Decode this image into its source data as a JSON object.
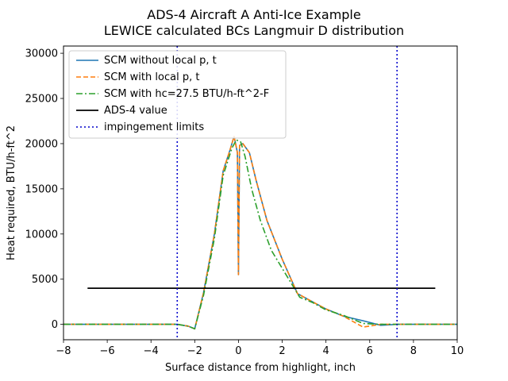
{
  "chart_data": {
    "type": "line",
    "title": "ADS-4 Aircraft A Anti-Ice Example",
    "subtitle": "LEWICE calculated BCs Langmuir D distribution",
    "xlabel": "Surface distance from highlight, inch",
    "ylabel": "Heat required, BTU/h-ft^2",
    "xlim": [
      -8,
      10
    ],
    "ylim": [
      -1700,
      30800
    ],
    "xticks": [
      -8,
      -6,
      -4,
      -2,
      0,
      2,
      4,
      6,
      8,
      10
    ],
    "xtick_labels": [
      "−8",
      "−6",
      "−4",
      "−2",
      "0",
      "2",
      "4",
      "6",
      "8",
      "10"
    ],
    "yticks": [
      0,
      5000,
      10000,
      15000,
      20000,
      25000,
      30000
    ],
    "ytick_labels": [
      "0",
      "5000",
      "10000",
      "15000",
      "20000",
      "25000",
      "30000"
    ],
    "legend_position": "upper-left",
    "series": [
      {
        "name": "SCM without local p, t",
        "color": "#1f77b4",
        "style": "solid",
        "x": [
          -8,
          -2.8,
          -2.3,
          -2.0,
          -1.6,
          -1.1,
          -0.7,
          -0.4,
          -0.2,
          -0.05,
          0.0,
          0.05,
          0.2,
          0.5,
          0.8,
          1.3,
          2.0,
          2.7,
          3.3,
          4.0,
          4.8,
          5.7,
          6.5,
          7.3,
          10
        ],
        "values": [
          0,
          0,
          -200,
          -500,
          3500,
          10000,
          17000,
          19200,
          20800,
          19000,
          5500,
          19800,
          20000,
          19000,
          16000,
          11500,
          7200,
          3400,
          2600,
          1700,
          900,
          400,
          -100,
          0,
          0
        ]
      },
      {
        "name": "SCM with local p, t",
        "color": "#ff7f0e",
        "style": "dashed",
        "x": [
          -8,
          -2.8,
          -2.3,
          -2.0,
          -1.6,
          -1.1,
          -0.7,
          -0.4,
          -0.2,
          -0.05,
          0.0,
          0.05,
          0.2,
          0.5,
          0.8,
          1.3,
          2.0,
          2.7,
          3.3,
          4.0,
          4.8,
          5.7,
          6.5,
          7.3,
          10
        ],
        "values": [
          0,
          0,
          -200,
          -500,
          3500,
          10000,
          17000,
          19200,
          20800,
          19000,
          5500,
          19800,
          20000,
          19000,
          16000,
          11500,
          7200,
          3400,
          2600,
          1700,
          900,
          -300,
          0,
          0,
          0
        ]
      },
      {
        "name": "SCM with hc=27.5 BTU/h-ft^2-F",
        "color": "#2ca02c",
        "style": "dashdot",
        "x": [
          -8,
          -2.8,
          -2.3,
          -2.0,
          -1.6,
          -1.1,
          -0.7,
          -0.3,
          -0.1,
          0.0,
          0.1,
          0.3,
          0.6,
          1.0,
          1.5,
          2.1,
          2.8,
          3.4,
          4.0,
          4.8,
          5.7,
          6.5,
          7.3,
          10
        ],
        "values": [
          0,
          0,
          -200,
          -500,
          3200,
          9500,
          16500,
          19500,
          20400,
          20300,
          20200,
          18600,
          15000,
          11500,
          8200,
          5800,
          3000,
          2400,
          1600,
          1000,
          100,
          0,
          0,
          0
        ]
      },
      {
        "name": "ADS-4 value",
        "color": "#000000",
        "style": "solid",
        "x": [
          -6.9,
          9.0
        ],
        "values": [
          4000,
          4000
        ]
      }
    ],
    "vlines": {
      "name": "impingement limits",
      "color": "#0000cc",
      "style": "dotted",
      "x": [
        -2.8,
        7.25
      ]
    }
  }
}
